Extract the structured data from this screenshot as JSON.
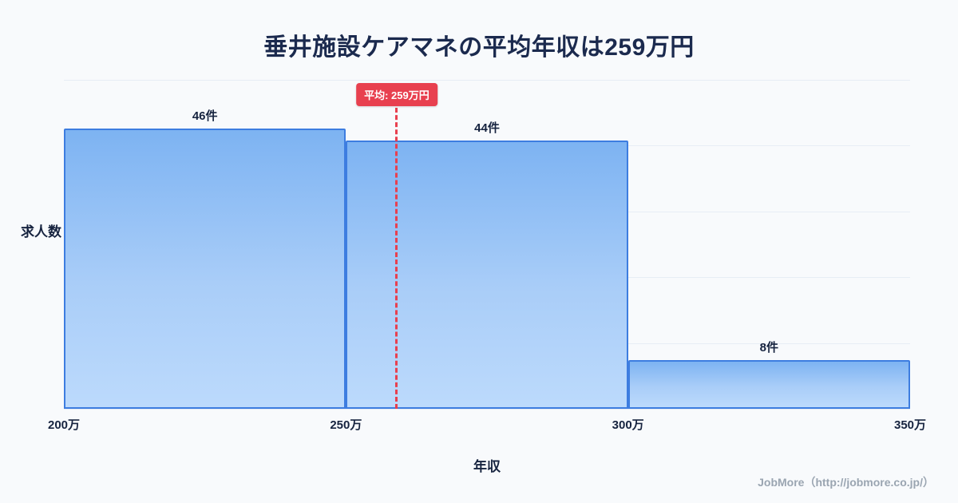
{
  "footer": {
    "credit": "JobMore（http://jobmore.co.jp/）"
  },
  "chart_data": {
    "type": "bar",
    "title": "垂井施設ケアマネの平均年収は259万円",
    "xlabel": "年収",
    "ylabel": "求人数",
    "bins": [
      {
        "range": [
          200,
          250
        ],
        "count": 46,
        "label": "46件"
      },
      {
        "range": [
          250,
          300
        ],
        "count": 44,
        "label": "44件"
      },
      {
        "range": [
          300,
          350
        ],
        "count": 8,
        "label": "8件"
      }
    ],
    "x_ticks": [
      "200万",
      "250万",
      "300万",
      "350万"
    ],
    "x_range": [
      200,
      350
    ],
    "ylim": [
      0,
      54
    ],
    "grid": true,
    "legend": "none",
    "average": {
      "value": 259,
      "label": "平均: 259万円"
    },
    "colors": {
      "bar_top": "#7db3f2",
      "bar_bottom": "#bcdafc",
      "bar_border": "#3d7de0",
      "average_line": "#e8404f",
      "title": "#1b2a4e",
      "grid": "#e7edf5",
      "background": "#f8fafc",
      "footer": "#9aa5b1"
    }
  }
}
